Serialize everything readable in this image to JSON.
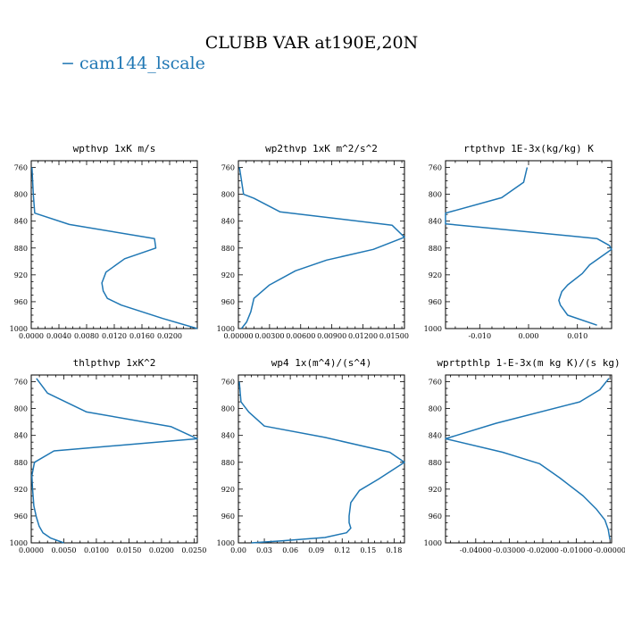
{
  "title": "CLUBB VAR at190E,20N",
  "legend": {
    "label": "cam144_lscale",
    "color": "#1f77b4",
    "marker": "−"
  },
  "chart_data": [
    {
      "type": "line",
      "title": "wpthvp  1xK m/s",
      "xlim": [
        0,
        0.024
      ],
      "ylim": [
        1000,
        750
      ],
      "xticks": [
        "0.0000",
        "0.0040",
        "0.0080",
        "0.0120",
        "0.0160",
        "0.0200"
      ],
      "xtick_values": [
        0,
        0.004,
        0.008,
        0.012,
        0.016,
        0.02
      ],
      "yticks": [
        760,
        800,
        840,
        880,
        920,
        960,
        1000
      ],
      "series": [
        {
          "x": [
            0.0001,
            0.0003,
            0.0005,
            0.0055,
            0.0178,
            0.018,
            0.0135,
            0.0108,
            0.0102,
            0.0104,
            0.011,
            0.013,
            0.019,
            0.024
          ],
          "y": [
            760,
            800,
            828,
            845,
            866,
            880,
            896,
            916,
            932,
            944,
            955,
            965,
            985,
            1000
          ]
        }
      ]
    },
    {
      "type": "line",
      "title": "wp2thvp  1xK m^2/s^2",
      "xlim": [
        0,
        0.016
      ],
      "ylim": [
        1000,
        750
      ],
      "xticks": [
        "0.00000",
        "0.00300",
        "0.00600",
        "0.00900",
        "0.01200",
        "0.01500"
      ],
      "xtick_values": [
        0,
        0.003,
        0.006,
        0.009,
        0.012,
        0.015
      ],
      "yticks": [
        760,
        800,
        840,
        880,
        920,
        960,
        1000
      ],
      "series": [
        {
          "x": [
            0.0001,
            0.0005,
            0.0015,
            0.004,
            0.0148,
            0.016,
            0.013,
            0.0085,
            0.0055,
            0.003,
            0.0015,
            0.0012,
            0.0008,
            0.0003
          ],
          "y": [
            760,
            800,
            806,
            826,
            846,
            864,
            882,
            898,
            914,
            935,
            955,
            975,
            990,
            1000
          ]
        }
      ]
    },
    {
      "type": "line",
      "title": "rtpthvp  1E-3x(kg/kg) K",
      "xlim": [
        -0.017,
        0.017
      ],
      "ylim": [
        1000,
        750
      ],
      "xticks": [
        "-0.010",
        "0.000",
        "0.010"
      ],
      "xtick_values": [
        -0.01,
        0.0,
        0.01
      ],
      "yticks": [
        760,
        800,
        840,
        880,
        920,
        960,
        1000
      ],
      "series": [
        {
          "x": [
            -0.0003,
            -0.001,
            -0.0055,
            -0.017,
            -0.017,
            0.014,
            0.0165,
            0.017,
            0.0125,
            0.011,
            0.008,
            0.0068,
            0.0062,
            0.0065,
            0.008,
            0.014
          ],
          "y": [
            760,
            782,
            805,
            828,
            844,
            866,
            876,
            882,
            905,
            918,
            935,
            945,
            958,
            965,
            980,
            995
          ]
        }
      ]
    },
    {
      "type": "line",
      "title": "thlpthvp  1xK^2",
      "xlim": [
        0,
        0.0255
      ],
      "ylim": [
        1000,
        750
      ],
      "xticks": [
        "0.0000",
        "0.0050",
        "0.0100",
        "0.0150",
        "0.0200",
        "0.0250"
      ],
      "xtick_values": [
        0,
        0.005,
        0.01,
        0.015,
        0.02,
        0.025
      ],
      "yticks": [
        760,
        800,
        840,
        880,
        920,
        960,
        1000
      ],
      "series": [
        {
          "x": [
            0.0008,
            0.0025,
            0.0085,
            0.0215,
            0.0255,
            0.0035,
            0.0005,
            0.0001,
            0.0002,
            0.0004,
            0.0008,
            0.0012,
            0.0018,
            0.003,
            0.005
          ],
          "y": [
            755,
            777,
            805,
            827,
            845,
            863,
            880,
            900,
            920,
            945,
            962,
            975,
            985,
            993,
            1000
          ]
        }
      ]
    },
    {
      "type": "line",
      "title": "wp4  1x(m^4)/(s^4)",
      "xlim": [
        0,
        0.192
      ],
      "ylim": [
        1000,
        750
      ],
      "xticks": [
        "0.00",
        "0.03",
        "0.06",
        "0.09",
        "0.12",
        "0.15",
        "0.18"
      ],
      "xtick_values": [
        0,
        0.03,
        0.06,
        0.09,
        0.12,
        0.15,
        0.18
      ],
      "yticks": [
        760,
        800,
        840,
        880,
        920,
        960,
        1000
      ],
      "series": [
        {
          "x": [
            0.001,
            0.003,
            0.012,
            0.03,
            0.1,
            0.175,
            0.192,
            0.162,
            0.14,
            0.13,
            0.128,
            0.128,
            0.13,
            0.125,
            0.1,
            0.05,
            0.015
          ],
          "y": [
            760,
            790,
            805,
            826,
            843,
            865,
            880,
            905,
            922,
            940,
            960,
            970,
            978,
            985,
            992,
            997,
            1000
          ]
        }
      ]
    },
    {
      "type": "line",
      "title": "wprtpthlp  1-E-3x(m kg K)/(s kg)",
      "xlim": [
        -0.049,
        0.0005
      ],
      "ylim": [
        1000,
        750
      ],
      "xticks": [
        "-0.04000",
        "-0.03000",
        "-0.02000",
        "-0.01000",
        "-0.00000"
      ],
      "xtick_values": [
        -0.04,
        -0.03,
        -0.02,
        -0.01,
        0.0
      ],
      "yticks": [
        760,
        800,
        840,
        880,
        920,
        960,
        1000
      ],
      "series": [
        {
          "x": [
            -0.0003,
            -0.003,
            -0.009,
            -0.034,
            -0.049,
            -0.032,
            -0.021,
            -0.015,
            -0.008,
            -0.004,
            -0.0015,
            -0.0005,
            0.0
          ],
          "y": [
            755,
            772,
            790,
            822,
            845,
            865,
            882,
            903,
            930,
            950,
            966,
            980,
            995
          ]
        }
      ]
    }
  ]
}
